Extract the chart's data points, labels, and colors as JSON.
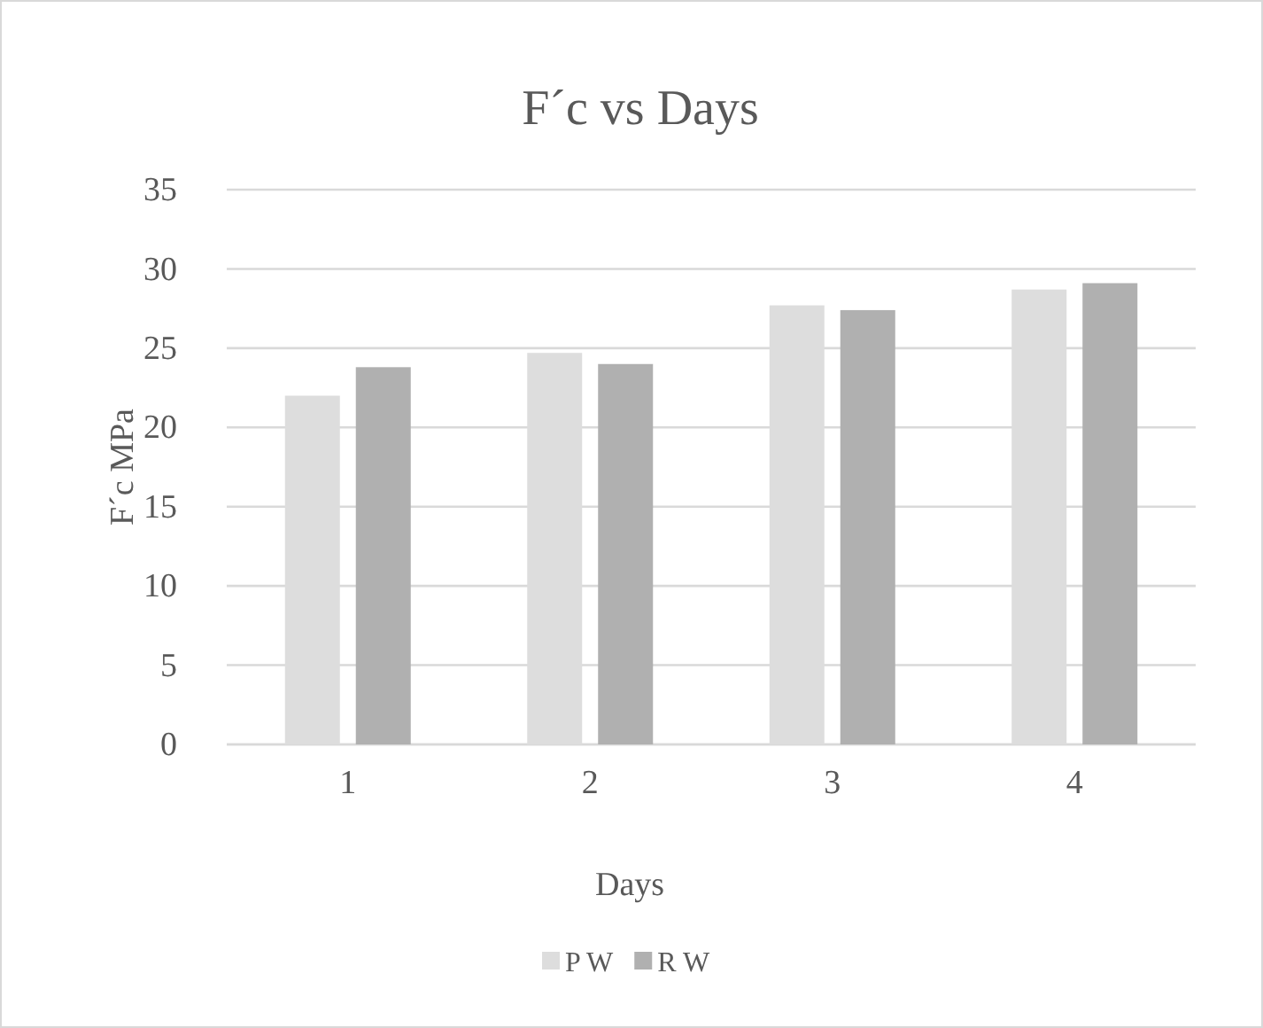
{
  "chart_data": {
    "type": "bar",
    "title": "F´c vs Days",
    "xlabel": "Days",
    "ylabel": "F´c MPa",
    "categories": [
      "1",
      "2",
      "3",
      "4"
    ],
    "series": [
      {
        "name": "P W",
        "color": "#dddddd",
        "values": [
          22.0,
          24.7,
          27.7,
          28.7
        ]
      },
      {
        "name": "R W",
        "color": "#b0b0b0",
        "values": [
          23.8,
          24.0,
          27.4,
          29.1
        ]
      }
    ],
    "ylim": [
      0,
      35
    ],
    "yticks": [
      0,
      5,
      10,
      15,
      20,
      25,
      30,
      35
    ],
    "grid": "y",
    "legend": "bottom"
  }
}
